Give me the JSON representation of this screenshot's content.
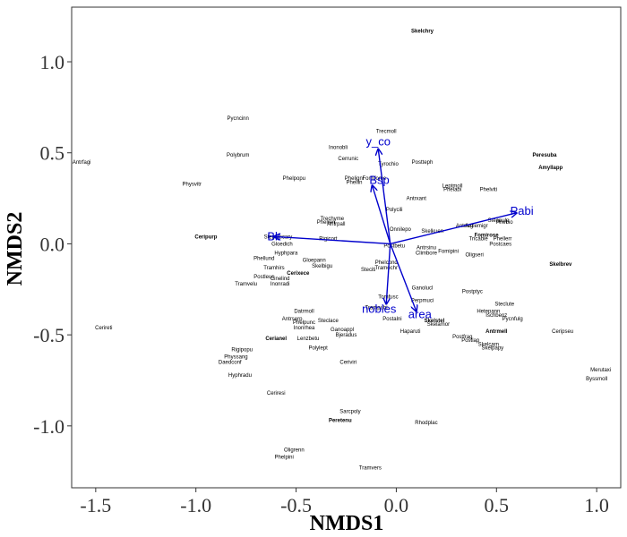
{
  "chart_data": {
    "type": "scatter",
    "xlabel": "NMDS1",
    "ylabel": "NMDS2",
    "xlim": [
      -1.62,
      1.12
    ],
    "ylim": [
      -1.34,
      1.3
    ],
    "xticks": [
      -1.5,
      -1.0,
      -0.5,
      0.0,
      0.5,
      1.0
    ],
    "xtick_labels": [
      "-1.5",
      "-1.0",
      "-0.5",
      "0.0",
      "0.5",
      "1.0"
    ],
    "yticks": [
      -1.0,
      -0.5,
      0.0,
      0.5,
      1.0
    ],
    "ytick_labels": [
      "-1.0",
      "-0.5",
      "0.0",
      "0.5",
      "1.0"
    ],
    "grid": false,
    "points": [
      {
        "label": "Skelchry",
        "x": 0.13,
        "y": 1.17,
        "bold": true
      },
      {
        "label": "Pycncinn",
        "x": -0.79,
        "y": 0.69
      },
      {
        "label": "Trecmoll",
        "x": -0.05,
        "y": 0.62
      },
      {
        "label": "Inonobli",
        "x": -0.29,
        "y": 0.53
      },
      {
        "label": "Cerrunic",
        "x": -0.24,
        "y": 0.47
      },
      {
        "label": "Tyrochio",
        "x": -0.04,
        "y": 0.44
      },
      {
        "label": "Postteph",
        "x": 0.13,
        "y": 0.45
      },
      {
        "label": "Antrfagi",
        "x": -1.57,
        "y": 0.45
      },
      {
        "label": "Polybrum",
        "x": -0.79,
        "y": 0.49
      },
      {
        "label": "Peresuba",
        "x": 0.74,
        "y": 0.49,
        "bold": true
      },
      {
        "label": "Amyllapp",
        "x": 0.77,
        "y": 0.42,
        "bold": true
      },
      {
        "label": "Phelpopu",
        "x": -0.51,
        "y": 0.36
      },
      {
        "label": "Phelignl",
        "x": -0.21,
        "y": 0.36
      },
      {
        "label": "Fomifome",
        "x": -0.11,
        "y": 0.36
      },
      {
        "label": "Phellin",
        "x": -0.21,
        "y": 0.34
      },
      {
        "label": "Physvitr",
        "x": -1.02,
        "y": 0.33
      },
      {
        "label": "Leptmoll",
        "x": 0.28,
        "y": 0.32
      },
      {
        "label": "Phelabi",
        "x": 0.28,
        "y": 0.3
      },
      {
        "label": "Phelviti",
        "x": 0.46,
        "y": 0.3
      },
      {
        "label": "Antrxant",
        "x": 0.1,
        "y": 0.25
      },
      {
        "label": "Polycili",
        "x": -0.01,
        "y": 0.19
      },
      {
        "label": "Trechyme",
        "x": -0.32,
        "y": 0.14
      },
      {
        "label": "Phelreri",
        "x": -0.35,
        "y": 0.12
      },
      {
        "label": "Antrpall",
        "x": -0.3,
        "y": 0.11
      },
      {
        "label": "Onnilepo",
        "x": 0.02,
        "y": 0.08
      },
      {
        "label": "Skelkuen",
        "x": 0.18,
        "y": 0.07
      },
      {
        "label": "Antrfag",
        "x": 0.34,
        "y": 0.1
      },
      {
        "label": "Antlemigr",
        "x": 0.4,
        "y": 0.1
      },
      {
        "label": "Steapulp",
        "x": 0.51,
        "y": 0.13
      },
      {
        "label": "Phebio",
        "x": 0.54,
        "y": 0.12
      },
      {
        "label": "Ceripurp",
        "x": -0.95,
        "y": 0.04,
        "bold": true
      },
      {
        "label": "Stepaiecary",
        "x": -0.59,
        "y": 0.04
      },
      {
        "label": "Rigicort",
        "x": -0.34,
        "y": 0.03
      },
      {
        "label": "Fomirose",
        "x": 0.45,
        "y": 0.05,
        "bold": true
      },
      {
        "label": "Tricabie",
        "x": 0.41,
        "y": 0.03
      },
      {
        "label": "Phellerr",
        "x": 0.53,
        "y": 0.03
      },
      {
        "label": "Postcaes",
        "x": 0.52,
        "y": 0.0
      },
      {
        "label": "Gloedich",
        "x": -0.57,
        "y": 0.0
      },
      {
        "label": "Postbetu",
        "x": -0.01,
        "y": -0.01
      },
      {
        "label": "Antrsinu",
        "x": 0.15,
        "y": -0.02
      },
      {
        "label": "Hyphpara",
        "x": -0.55,
        "y": -0.05
      },
      {
        "label": "Climbore",
        "x": 0.15,
        "y": -0.05
      },
      {
        "label": "Fomipini",
        "x": 0.26,
        "y": -0.04
      },
      {
        "label": "Oligseri",
        "x": 0.39,
        "y": -0.06
      },
      {
        "label": "Skelbrev",
        "x": 0.82,
        "y": -0.11,
        "bold": true
      },
      {
        "label": "Phellund",
        "x": -0.66,
        "y": -0.08
      },
      {
        "label": "Gloepann",
        "x": -0.41,
        "y": -0.09
      },
      {
        "label": "Skelbigu",
        "x": -0.37,
        "y": -0.12
      },
      {
        "label": "Phelcond",
        "x": -0.05,
        "y": -0.1
      },
      {
        "label": "Steciti",
        "x": -0.14,
        "y": -0.14
      },
      {
        "label": "Tramochr",
        "x": -0.05,
        "y": -0.13
      },
      {
        "label": "Tramhirs",
        "x": -0.61,
        "y": -0.13
      },
      {
        "label": "Cerixece",
        "x": -0.49,
        "y": -0.16,
        "bold": true
      },
      {
        "label": "Postleuc",
        "x": -0.66,
        "y": -0.18
      },
      {
        "label": "Cinelind",
        "x": -0.58,
        "y": -0.19
      },
      {
        "label": "Tramvelu",
        "x": -0.75,
        "y": -0.22
      },
      {
        "label": "Inonradi",
        "x": -0.58,
        "y": -0.22
      },
      {
        "label": "Postptyc",
        "x": 0.38,
        "y": -0.26
      },
      {
        "label": "Ganolucl",
        "x": 0.13,
        "y": -0.24
      },
      {
        "label": "Tomfusc",
        "x": -0.04,
        "y": -0.29
      },
      {
        "label": "Perpmuci",
        "x": 0.13,
        "y": -0.31
      },
      {
        "label": "Steclute",
        "x": 0.54,
        "y": -0.33
      },
      {
        "label": "Trampubi",
        "x": -0.1,
        "y": -0.35
      },
      {
        "label": "Datrmoll",
        "x": -0.46,
        "y": -0.37
      },
      {
        "label": "Hetepann",
        "x": 0.46,
        "y": -0.37
      },
      {
        "label": "Ischbenz",
        "x": 0.5,
        "y": -0.39
      },
      {
        "label": "Pycnfulg",
        "x": 0.58,
        "y": -0.41
      },
      {
        "label": "Antrserp",
        "x": -0.52,
        "y": -0.41
      },
      {
        "label": "Phelpunc",
        "x": -0.46,
        "y": -0.43
      },
      {
        "label": "Steclace",
        "x": -0.34,
        "y": -0.42
      },
      {
        "label": "Postalni",
        "x": -0.02,
        "y": -0.41
      },
      {
        "label": "Skelstel",
        "x": 0.19,
        "y": -0.42,
        "bold": true
      },
      {
        "label": "Skelamor",
        "x": 0.21,
        "y": -0.44
      },
      {
        "label": "Inonrhea",
        "x": -0.46,
        "y": -0.46
      },
      {
        "label": "Ganoappl",
        "x": -0.27,
        "y": -0.47
      },
      {
        "label": "Haparuti",
        "x": 0.07,
        "y": -0.48
      },
      {
        "label": "Antrmell",
        "x": 0.5,
        "y": -0.48,
        "bold": true
      },
      {
        "label": "Cerireti",
        "x": -1.46,
        "y": -0.46
      },
      {
        "label": "Ceripseu",
        "x": 0.83,
        "y": -0.48
      },
      {
        "label": "Bjeradus",
        "x": -0.25,
        "y": -0.5
      },
      {
        "label": "Postfrag",
        "x": 0.33,
        "y": -0.51
      },
      {
        "label": "Postlap",
        "x": 0.37,
        "y": -0.53
      },
      {
        "label": "Cerianel",
        "x": -0.6,
        "y": -0.52,
        "bold": true
      },
      {
        "label": "Lenzbetu",
        "x": -0.44,
        "y": -0.52
      },
      {
        "label": "Skelcarn",
        "x": 0.46,
        "y": -0.55
      },
      {
        "label": "Skelpapy",
        "x": 0.48,
        "y": -0.57
      },
      {
        "label": "Polylept",
        "x": -0.39,
        "y": -0.57
      },
      {
        "label": "Rigipopu",
        "x": -0.77,
        "y": -0.58
      },
      {
        "label": "Physsang",
        "x": -0.8,
        "y": -0.62
      },
      {
        "label": "Daedconf",
        "x": -0.83,
        "y": -0.65
      },
      {
        "label": "Ceriviri",
        "x": -0.24,
        "y": -0.65
      },
      {
        "label": "Merutaxi",
        "x": 1.02,
        "y": -0.69
      },
      {
        "label": "Byssmoll",
        "x": 1.0,
        "y": -0.74
      },
      {
        "label": "Hyphradu",
        "x": -0.78,
        "y": -0.72
      },
      {
        "label": "Ceriresi",
        "x": -0.6,
        "y": -0.82
      },
      {
        "label": "Sarcpoly",
        "x": -0.23,
        "y": -0.92
      },
      {
        "label": "Peretenu",
        "x": -0.28,
        "y": -0.97,
        "bold": true
      },
      {
        "label": "Rhodplac",
        "x": 0.15,
        "y": -0.98
      },
      {
        "label": "Oligrenn",
        "x": -0.51,
        "y": -1.13
      },
      {
        "label": "Phelpini",
        "x": -0.56,
        "y": -1.17
      },
      {
        "label": "Tramvers",
        "x": -0.13,
        "y": -1.23
      }
    ],
    "vectors": [
      {
        "label": "y_co",
        "x": -0.09,
        "y": 0.52
      },
      {
        "label": "Bsp",
        "x": -0.12,
        "y": 0.32
      },
      {
        "label": "Pabi",
        "x": 0.6,
        "y": 0.17
      },
      {
        "label": "Bk",
        "x": -0.61,
        "y": 0.04
      },
      {
        "label": "nobles",
        "x": -0.05,
        "y": -0.33
      },
      {
        "label": "area",
        "x": 0.1,
        "y": -0.37
      }
    ],
    "vector_origin": [
      -0.03,
      0.0
    ],
    "colors": {
      "vector": "#0000cc",
      "text": "#000000",
      "axis": "#333333"
    }
  }
}
